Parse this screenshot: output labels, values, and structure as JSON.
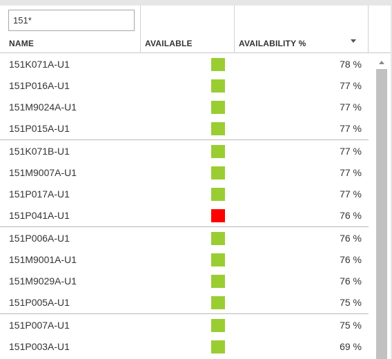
{
  "filter": {
    "value": "151*"
  },
  "columns": {
    "name": "NAME",
    "available": "AVAILABLE",
    "availability_pct": "AVAILABILITY %"
  },
  "colors": {
    "available": "#9acd32",
    "unavailable": "#ff0000"
  },
  "rows": [
    {
      "name": "151K071A-U1",
      "available": true,
      "pct": "78 %"
    },
    {
      "name": "151P016A-U1",
      "available": true,
      "pct": "77 %"
    },
    {
      "name": "151M9024A-U1",
      "available": true,
      "pct": "77 %"
    },
    {
      "name": "151P015A-U1",
      "available": true,
      "pct": "77 %"
    },
    {
      "name": "151K071B-U1",
      "available": true,
      "pct": "77 %"
    },
    {
      "name": "151M9007A-U1",
      "available": true,
      "pct": "77 %"
    },
    {
      "name": "151P017A-U1",
      "available": true,
      "pct": "77 %"
    },
    {
      "name": "151P041A-U1",
      "available": false,
      "pct": "76 %"
    },
    {
      "name": "151P006A-U1",
      "available": true,
      "pct": "76 %"
    },
    {
      "name": "151M9001A-U1",
      "available": true,
      "pct": "76 %"
    },
    {
      "name": "151M9029A-U1",
      "available": true,
      "pct": "76 %"
    },
    {
      "name": "151P005A-U1",
      "available": true,
      "pct": "75 %"
    },
    {
      "name": "151P007A-U1",
      "available": true,
      "pct": "75 %"
    },
    {
      "name": "151P003A-U1",
      "available": true,
      "pct": "69 %"
    }
  ]
}
